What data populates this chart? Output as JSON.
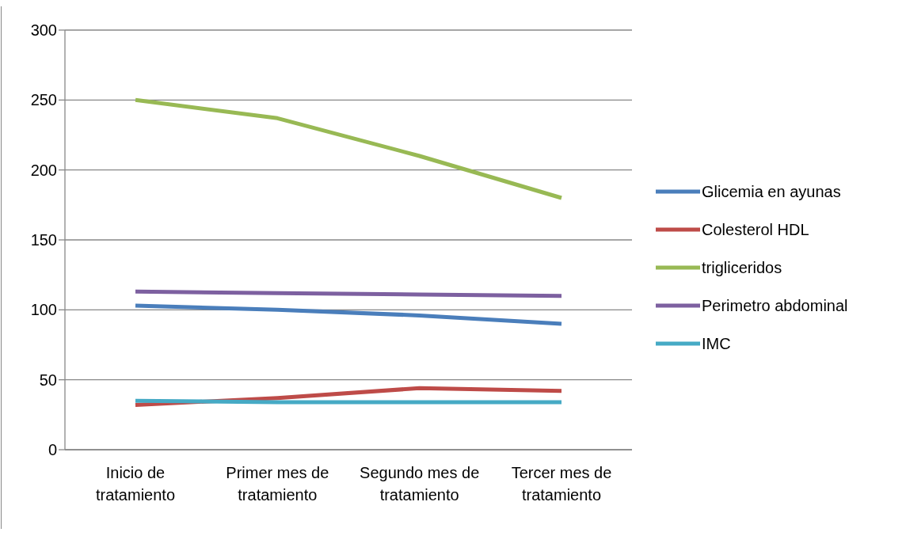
{
  "chart_data": {
    "type": "line",
    "categories": [
      "Inicio de tratamiento",
      "Primer mes de tratamiento",
      "Segundo mes de tratamiento",
      "Tercer mes de tratamiento"
    ],
    "series": [
      {
        "name": "Glicemia en ayunas",
        "color": "#4a7ebb",
        "values": [
          103,
          100,
          96,
          90
        ]
      },
      {
        "name": "Colesterol HDL",
        "color": "#be4b48",
        "values": [
          32,
          37,
          44,
          42
        ]
      },
      {
        "name": "trigliceridos",
        "color": "#98b954",
        "values": [
          250,
          237,
          210,
          180
        ]
      },
      {
        "name": "Perimetro abdominal",
        "color": "#7d60a0",
        "values": [
          113,
          112,
          111,
          110
        ]
      },
      {
        "name": "IMC",
        "color": "#46aac5",
        "values": [
          35,
          34,
          34,
          34
        ]
      }
    ],
    "ylim": [
      0,
      300
    ],
    "yticks": [
      0,
      50,
      100,
      150,
      200,
      250,
      300
    ],
    "grid": "y",
    "legend": "right",
    "marker": "none",
    "line_style": "solid"
  }
}
